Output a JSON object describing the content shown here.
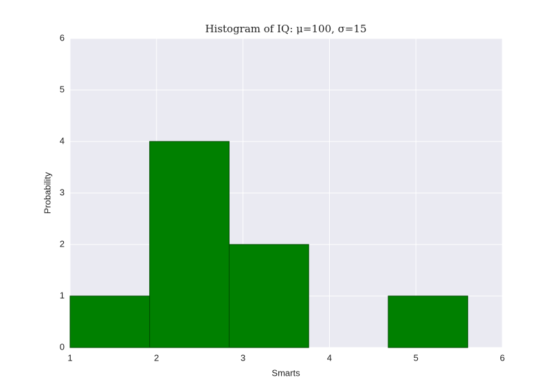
{
  "chart_data": {
    "type": "histogram",
    "title": "Histogram of IQ: μ=100, σ=15",
    "x_label": "Smarts",
    "y_label": "Probability",
    "bins": [
      1,
      1.92,
      2.84,
      3.76,
      4.68,
      5.6
    ],
    "values": [
      1,
      4,
      2,
      0,
      1
    ],
    "color": "#008000",
    "edge_color": "#004d00",
    "xlim": [
      1,
      6
    ],
    "xticks": [
      1,
      2,
      3,
      4,
      5,
      6
    ],
    "ylim": [
      0,
      6
    ],
    "yticks": [
      0,
      1,
      2,
      3,
      4,
      5,
      6
    ],
    "grid": true,
    "background": "#eaeaf2"
  }
}
